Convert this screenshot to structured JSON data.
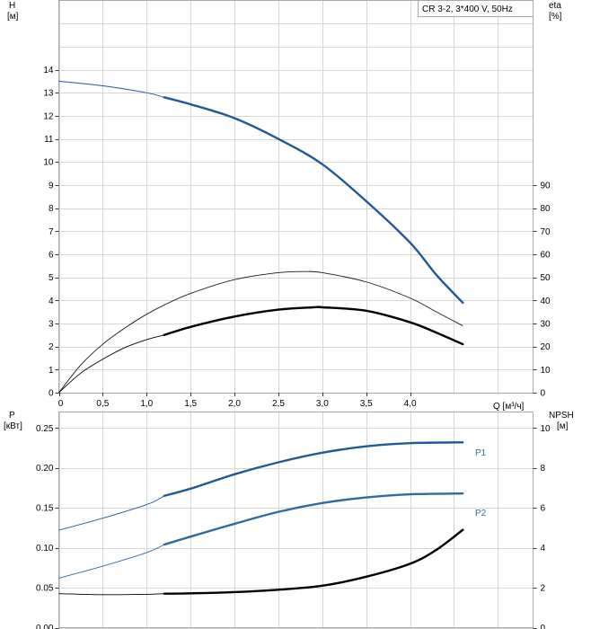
{
  "chart_data": [
    {
      "type": "line",
      "legend_text": "CR 3-2, 3*400 V, 50Hz",
      "legend_placement": "top-right",
      "grid": true,
      "x_axis": {
        "label": "Q [м³/ч]",
        "min": 0,
        "max": 5.4,
        "ticks": [
          0,
          0.5,
          1.0,
          1.5,
          2.0,
          2.5,
          3.0,
          3.5,
          4.0
        ],
        "tick_labels": [
          "0",
          "0,5",
          "1,0",
          "1,5",
          "2,0",
          "2,5",
          "3,0",
          "3,5",
          "4,0"
        ]
      },
      "y_axis_left": {
        "label_line1": "H",
        "label_line2": "[м]",
        "min": 0,
        "max": 17,
        "ticks": [
          0,
          1,
          2,
          3,
          4,
          5,
          6,
          7,
          8,
          9,
          10,
          11,
          12,
          13,
          14
        ],
        "tick_labels": [
          "0",
          "1",
          "2",
          "3",
          "4",
          "5",
          "6",
          "7",
          "8",
          "9",
          "10",
          "11",
          "12",
          "13",
          "14"
        ]
      },
      "y_axis_right": {
        "label_line1": "eta",
        "label_line2": "[%]",
        "min": 0,
        "max": 170,
        "ticks": [
          0,
          10,
          20,
          30,
          40,
          50,
          60,
          70,
          80,
          90
        ],
        "tick_labels": [
          "0",
          "10",
          "20",
          "30",
          "40",
          "50",
          "60",
          "70",
          "80",
          "90"
        ]
      },
      "series": [
        {
          "axis": "left",
          "color": "#1f5a96",
          "points_thin": [
            [
              0,
              13.5
            ],
            [
              0.5,
              13.3
            ],
            [
              1.0,
              13.0
            ],
            [
              1.2,
              12.8
            ]
          ],
          "points_thick": [
            [
              1.2,
              12.8
            ],
            [
              1.5,
              12.5
            ],
            [
              2.0,
              11.9
            ],
            [
              2.5,
              11.0
            ],
            [
              3.0,
              9.9
            ],
            [
              3.5,
              8.3
            ],
            [
              4.0,
              6.5
            ],
            [
              4.3,
              5.1
            ],
            [
              4.6,
              3.9
            ]
          ]
        },
        {
          "axis": "right",
          "color": "#1a1a1a",
          "points_thin": [
            [
              0,
              0
            ],
            [
              0.25,
              12
            ],
            [
              0.5,
              21
            ],
            [
              0.75,
              28
            ],
            [
              1.0,
              34
            ],
            [
              1.2,
              38
            ],
            [
              1.5,
              43
            ],
            [
              2.0,
              49
            ],
            [
              2.5,
              52
            ],
            [
              2.8,
              52.5
            ],
            [
              3.0,
              52
            ],
            [
              3.5,
              48
            ],
            [
              4.0,
              41
            ],
            [
              4.3,
              35
            ],
            [
              4.6,
              29
            ]
          ],
          "points_thick": []
        },
        {
          "axis": "right",
          "color": "#000000",
          "points_thin": [
            [
              0,
              0
            ],
            [
              0.25,
              8.5
            ],
            [
              0.5,
              14.5
            ],
            [
              0.75,
              19.5
            ],
            [
              1.0,
              23
            ],
            [
              1.2,
              25
            ]
          ],
          "points_thick": [
            [
              1.2,
              25
            ],
            [
              1.5,
              28.5
            ],
            [
              2.0,
              33
            ],
            [
              2.5,
              36
            ],
            [
              2.9,
              37
            ],
            [
              3.0,
              37
            ],
            [
              3.5,
              35.5
            ],
            [
              4.0,
              30.5
            ],
            [
              4.3,
              26
            ],
            [
              4.6,
              21
            ]
          ]
        }
      ]
    },
    {
      "type": "line",
      "grid": true,
      "x_axis": {
        "min": 0,
        "max": 5.4,
        "ticks": [
          0,
          0.5,
          1.0,
          1.5,
          2.0,
          2.5,
          3.0,
          3.5,
          4.0
        ]
      },
      "y_axis_left": {
        "label_line1": "P",
        "label_line2": "[кВт]",
        "min": 0,
        "max": 0.27,
        "ticks": [
          0,
          0.05,
          0.1,
          0.15,
          0.2,
          0.25
        ],
        "tick_labels": [
          "0.00",
          "0.05",
          "0.10",
          "0.15",
          "0.20",
          "0.25"
        ]
      },
      "y_axis_right": {
        "label_line1": "NPSH",
        "label_line2": "[м]",
        "min": 0,
        "max": 10.8,
        "ticks": [
          0,
          2,
          4,
          6,
          8,
          10
        ],
        "tick_labels": [
          "0",
          "2",
          "4",
          "6",
          "8",
          "10"
        ]
      },
      "series": [
        {
          "name": "P1",
          "axis": "left",
          "color": "#1f5a96",
          "points_thin": [
            [
              0,
              0.122
            ],
            [
              0.5,
              0.137
            ],
            [
              1.0,
              0.154
            ],
            [
              1.2,
              0.165
            ]
          ],
          "points_thick": [
            [
              1.2,
              0.165
            ],
            [
              1.5,
              0.174
            ],
            [
              2.0,
              0.192
            ],
            [
              2.5,
              0.207
            ],
            [
              3.0,
              0.219
            ],
            [
              3.5,
              0.227
            ],
            [
              4.0,
              0.231
            ],
            [
              4.6,
              0.232
            ]
          ]
        },
        {
          "name": "P2",
          "axis": "left",
          "color": "#2f6aa3",
          "points_thin": [
            [
              0,
              0.062
            ],
            [
              0.5,
              0.077
            ],
            [
              1.0,
              0.094
            ],
            [
              1.2,
              0.104
            ]
          ],
          "points_thick": [
            [
              1.2,
              0.104
            ],
            [
              1.5,
              0.114
            ],
            [
              2.0,
              0.13
            ],
            [
              2.5,
              0.145
            ],
            [
              3.0,
              0.156
            ],
            [
              3.5,
              0.163
            ],
            [
              4.0,
              0.167
            ],
            [
              4.6,
              0.168
            ]
          ]
        },
        {
          "axis": "right",
          "color": "#000000",
          "points_thin": [
            [
              0,
              1.7
            ],
            [
              0.5,
              1.65
            ],
            [
              1.0,
              1.67
            ],
            [
              1.2,
              1.7
            ]
          ],
          "points_thick": [
            [
              1.2,
              1.7
            ],
            [
              1.5,
              1.72
            ],
            [
              2.0,
              1.78
            ],
            [
              2.5,
              1.9
            ],
            [
              3.0,
              2.1
            ],
            [
              3.5,
              2.55
            ],
            [
              4.0,
              3.2
            ],
            [
              4.3,
              3.9
            ],
            [
              4.6,
              4.9
            ]
          ]
        }
      ]
    }
  ]
}
